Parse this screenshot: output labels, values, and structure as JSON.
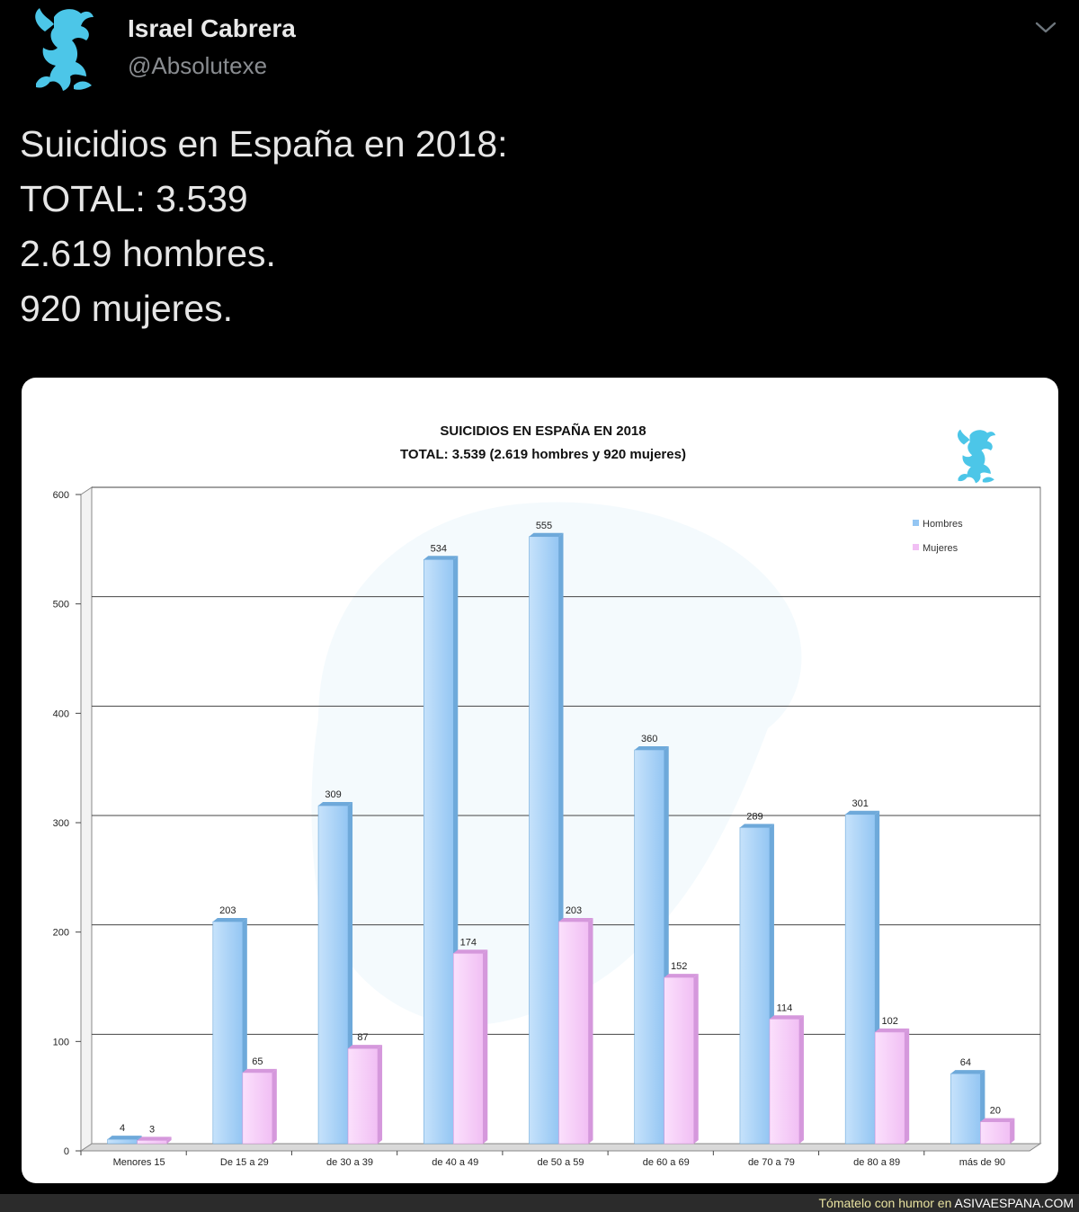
{
  "tweet": {
    "display_name": "Israel Cabrera",
    "handle": "@Absolutexe",
    "text_lines": [
      "Suicidios en España en 2018:",
      "TOTAL: 3.539",
      "2.619 hombres.",
      "920 mujeres."
    ]
  },
  "icons": {
    "avatar": "griffin-logo-icon",
    "menu": "chevron-down-icon"
  },
  "colors": {
    "background": "#000000",
    "hombres": "#a9d3f7",
    "mujeres": "#f7cdf9",
    "logo": "#4cc6e8",
    "footer_text": "#e8e2a0"
  },
  "chart_data": {
    "type": "bar",
    "title": "SUICIDIOS EN ESPAÑA EN 2018",
    "subtitle": "TOTAL: 3.539 (2.619 hombres y 920 mujeres)",
    "categories": [
      "Menores 15",
      "De 15 a 29",
      "de 30 a 39",
      "de 40 a 49",
      "de 50 a 59",
      "de 60 a 69",
      "de 70 a 79",
      "de 80 a 89",
      "más de 90"
    ],
    "series": [
      {
        "name": "Hombres",
        "values": [
          4,
          203,
          309,
          534,
          555,
          360,
          289,
          301,
          64
        ]
      },
      {
        "name": "Mujeres",
        "values": [
          3,
          65,
          87,
          174,
          203,
          152,
          114,
          102,
          20
        ]
      }
    ],
    "ylim": [
      0,
      600
    ],
    "yticks": [
      0,
      100,
      200,
      300,
      400,
      500,
      600
    ],
    "grid": true,
    "legend": "top-right",
    "data_labels": true
  },
  "footer": {
    "prefix": "Tómatelo con humor en",
    "site": "ASIVAESPANA.COM"
  }
}
